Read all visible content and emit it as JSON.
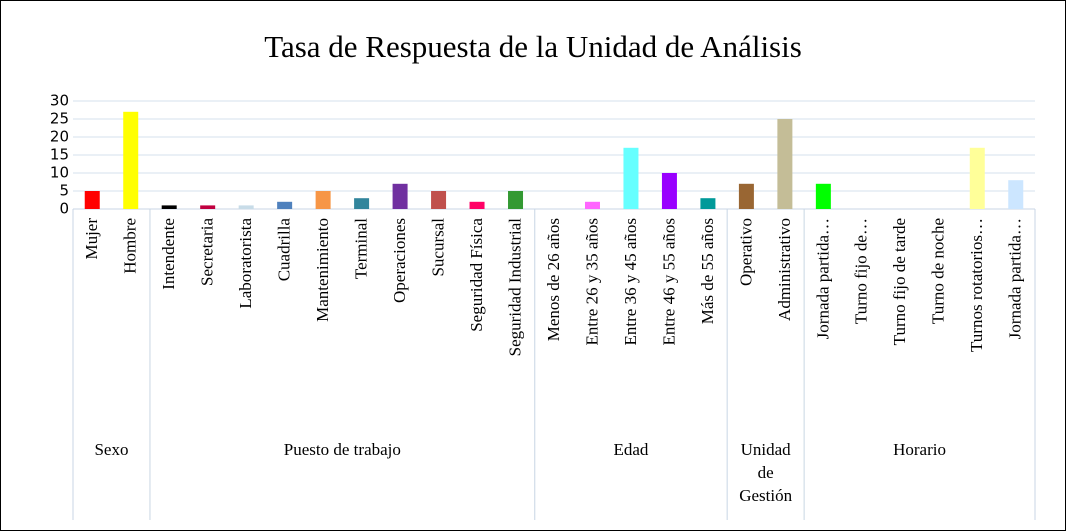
{
  "chart_data": {
    "type": "bar",
    "title": "Tasa de Respuesta de la Unidad de Análisis",
    "ylim": [
      0,
      30
    ],
    "yticks": [
      0,
      5,
      10,
      15,
      20,
      25,
      30
    ],
    "grid": true,
    "groups": [
      {
        "name": "Sexo",
        "categories": [
          "Mujer",
          "Hombre"
        ],
        "values": [
          5,
          27
        ],
        "colors": [
          "#ff0000",
          "#ffff00"
        ]
      },
      {
        "name": "Puesto de trabajo",
        "categories": [
          "Intendente",
          "Secretaria",
          "Laboratorista",
          "Cuadrilla",
          "Mantenimiento",
          "Terminal",
          "Operaciones",
          "Sucursal",
          "Seguridad Física",
          "Seguridad Industrial"
        ],
        "values": [
          1,
          1,
          1,
          2,
          5,
          3,
          7,
          5,
          2,
          5
        ],
        "colors": [
          "#000000",
          "#c00040",
          "#c8dce8",
          "#4f81bd",
          "#f79646",
          "#31859c",
          "#7030a0",
          "#c0504d",
          "#ff0066",
          "#339933"
        ]
      },
      {
        "name": "Edad",
        "categories": [
          "Menos de 26 años",
          "Entre 26 y 35 años",
          "Entre 36 y 45 años",
          "Entre 46 y 55 años",
          "Más de 55 años"
        ],
        "values": [
          0,
          2,
          17,
          10,
          3
        ],
        "colors": [
          null,
          "#ff66ff",
          "#66ffff",
          "#9900ff",
          "#009999"
        ]
      },
      {
        "name": "Unidad de Gestión",
        "categories": [
          "Operativo",
          "Administrativo"
        ],
        "values": [
          7,
          25
        ],
        "colors": [
          "#996633",
          "#c4bd97"
        ]
      },
      {
        "name": "Horario",
        "categories": [
          "Jornada partida…",
          "Turno fijo de…",
          "Turno fijo de tarde",
          "Turno de noche",
          "Turnos rotatorios…",
          "Jornada partida…"
        ],
        "values": [
          7,
          0,
          0,
          0,
          17,
          8
        ],
        "colors": [
          "#00ff00",
          null,
          null,
          null,
          "#ffff99",
          "#cce6ff"
        ]
      }
    ]
  }
}
